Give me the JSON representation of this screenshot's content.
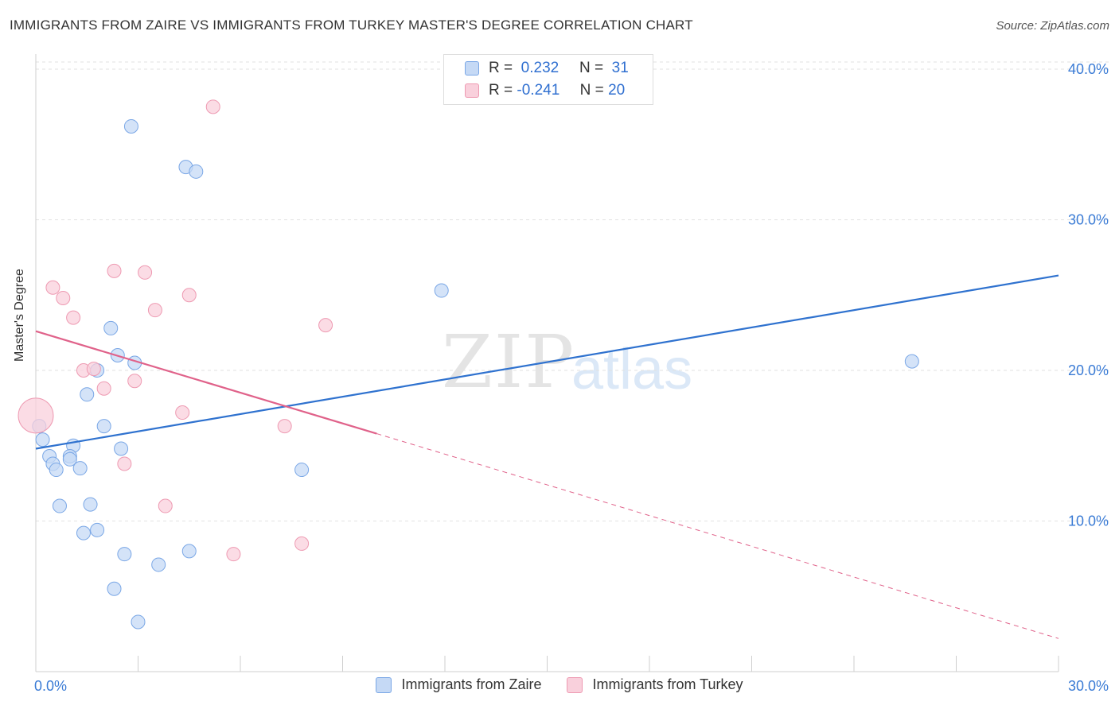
{
  "chart_data": {
    "type": "scatter",
    "title": "IMMIGRANTS FROM ZAIRE VS IMMIGRANTS FROM TURKEY MASTER'S DEGREE CORRELATION CHART",
    "source": "Source: ZipAtlas.com",
    "ylabel": "Master's Degree",
    "xlabel": "",
    "xlim": [
      0,
      30
    ],
    "ylim": [
      0,
      41
    ],
    "x_tick_labels": [
      "0.0%",
      "30.0%"
    ],
    "y_ticks": [
      10,
      20,
      30,
      40
    ],
    "y_tick_labels": [
      "10.0%",
      "20.0%",
      "30.0%",
      "40.0%"
    ],
    "watermark": "ZIPatlas",
    "legend": {
      "rows": [
        {
          "r_label": "R =",
          "r_value": "0.232",
          "n_label": "N =",
          "n_value": "31"
        },
        {
          "r_label": "R =",
          "r_value": "-0.241",
          "n_label": "N =",
          "n_value": "20"
        }
      ]
    },
    "series": [
      {
        "name": "Immigrants from Zaire",
        "color": "#7aa7e6",
        "fill": "#c5d9f5",
        "line_color": "#2f72cf",
        "trend": {
          "x0": 0,
          "y0": 14.8,
          "x1": 30,
          "y1": 26.3
        },
        "points": [
          [
            2.8,
            36.2
          ],
          [
            4.4,
            33.5
          ],
          [
            4.7,
            33.2
          ],
          [
            11.9,
            25.3
          ],
          [
            25.7,
            20.6
          ],
          [
            2.2,
            22.8
          ],
          [
            2.4,
            21.0
          ],
          [
            2.9,
            20.5
          ],
          [
            1.8,
            20.0
          ],
          [
            1.5,
            18.4
          ],
          [
            2.0,
            16.3
          ],
          [
            0.1,
            16.3
          ],
          [
            0.2,
            15.4
          ],
          [
            2.5,
            14.8
          ],
          [
            1.1,
            15.0
          ],
          [
            0.4,
            14.3
          ],
          [
            0.5,
            13.8
          ],
          [
            1.0,
            14.3
          ],
          [
            1.0,
            14.1
          ],
          [
            0.6,
            13.4
          ],
          [
            1.3,
            13.5
          ],
          [
            7.8,
            13.4
          ],
          [
            0.7,
            11.0
          ],
          [
            1.6,
            11.1
          ],
          [
            1.8,
            9.4
          ],
          [
            1.4,
            9.2
          ],
          [
            2.6,
            7.8
          ],
          [
            4.5,
            8.0
          ],
          [
            3.6,
            7.1
          ],
          [
            2.3,
            5.5
          ],
          [
            3.0,
            3.3
          ]
        ]
      },
      {
        "name": "Immigrants from Turkey",
        "color": "#ee9ab2",
        "fill": "#f9d0dc",
        "line_color": "#e0628a",
        "trend": {
          "x0": 0,
          "y0": 22.6,
          "x1": 10,
          "y1": 15.8
        },
        "trend_dashed": {
          "x0": 10,
          "y0": 15.8,
          "x1": 30,
          "y1": 2.2
        },
        "points": [
          [
            5.2,
            37.5
          ],
          [
            2.3,
            26.6
          ],
          [
            3.2,
            26.5
          ],
          [
            0.5,
            25.5
          ],
          [
            4.5,
            25.0
          ],
          [
            0.8,
            24.8
          ],
          [
            1.1,
            23.5
          ],
          [
            3.5,
            24.0
          ],
          [
            8.5,
            23.0
          ],
          [
            1.4,
            20.0
          ],
          [
            1.7,
            20.1
          ],
          [
            2.9,
            19.3
          ],
          [
            2.0,
            18.8
          ],
          [
            4.3,
            17.2
          ],
          [
            7.3,
            16.3
          ],
          [
            0.0,
            17.0
          ],
          [
            2.6,
            13.8
          ],
          [
            3.8,
            11.0
          ],
          [
            5.8,
            7.8
          ],
          [
            7.8,
            8.5
          ]
        ]
      }
    ]
  }
}
